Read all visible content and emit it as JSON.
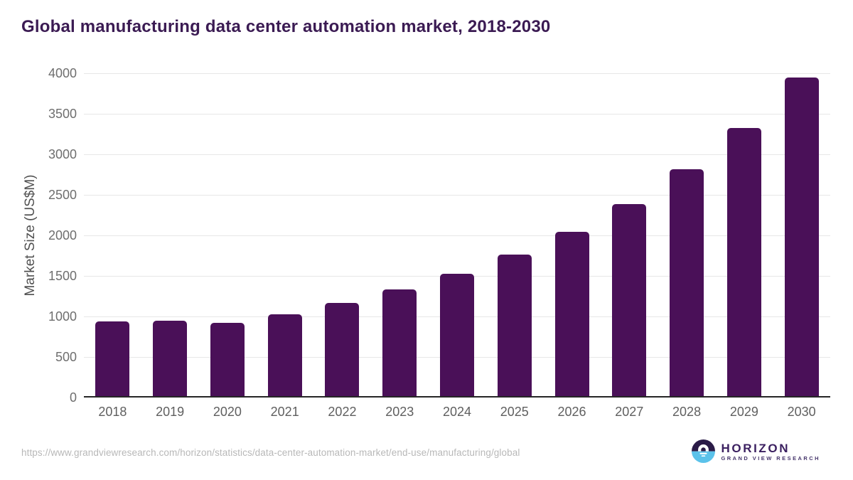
{
  "title": "Global manufacturing data center automation market, 2018-2030",
  "chart_data": {
    "type": "bar",
    "categories": [
      "2018",
      "2019",
      "2020",
      "2021",
      "2022",
      "2023",
      "2024",
      "2025",
      "2026",
      "2027",
      "2028",
      "2029",
      "2030"
    ],
    "values": [
      920,
      930,
      900,
      1005,
      1145,
      1315,
      1510,
      1745,
      2030,
      2370,
      2795,
      3305,
      3930
    ],
    "title": "Global manufacturing data center automation market, 2018-2030",
    "xlabel": "",
    "ylabel": "Market Size (US$M)",
    "ylim": [
      0,
      4000
    ],
    "ytick_step": 500,
    "yticks": [
      "0",
      "500",
      "1000",
      "1500",
      "2000",
      "2500",
      "3000",
      "3500",
      "4000"
    ],
    "grid": true,
    "legend": "none",
    "bar_color": "#4a1058"
  },
  "footer": {
    "source_url": "https://www.grandviewresearch.com/horizon/statistics/data-center-automation-market/end-use/manufacturing/global",
    "logo": {
      "name": "HORIZON",
      "subtitle": "GRAND VIEW RESEARCH",
      "icon": "horizon-sun-circle-icon",
      "icon_top_color": "#2b1b47",
      "icon_bottom_color": "#5bc2ea"
    }
  },
  "colors": {
    "title": "#3b1b53",
    "bar": "#4a1058",
    "gridline": "#e7e7e7",
    "axis_line": "#262626",
    "tick_label": "#6e6e6e",
    "axis_title": "#505050",
    "url_text": "#b8b8b8"
  }
}
